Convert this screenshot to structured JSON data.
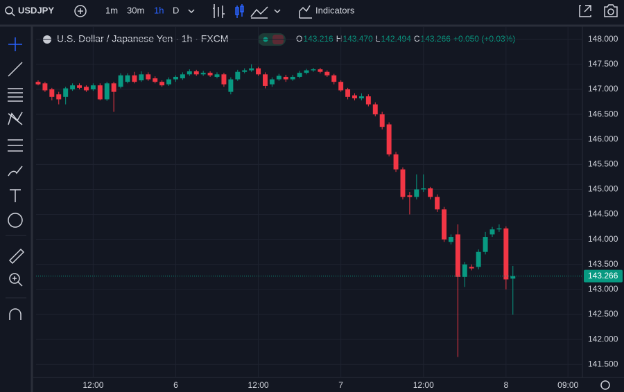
{
  "toolbar": {
    "symbol": "USDJPY",
    "intervals": [
      "1m",
      "30m",
      "1h",
      "D"
    ],
    "active_interval": 2,
    "indicators": "Indicators"
  },
  "chart_data": {
    "type": "candlestick",
    "title": "U.S. Dollar / Japanese Yen · 1h · FXCM",
    "ohlc_keys": [
      "O",
      "H",
      "L",
      "C"
    ],
    "value_labels": {
      "open": "143.216",
      "high": "143.470",
      "low": "142.494",
      "close": "143.266"
    },
    "change": "+0.050 (+0.03%)",
    "up_color": "#089981",
    "down_color": "#f23645",
    "open": [
      147.15,
      147.12,
      147.0,
      146.9,
      146.85,
      147.0,
      147.08,
      147.05,
      147.0,
      147.08,
      146.8,
      147.12,
      147.05,
      147.15,
      147.28,
      147.18,
      147.3,
      147.22,
      147.15,
      147.1,
      147.2,
      147.22,
      147.3,
      147.36,
      147.3,
      147.33,
      147.25,
      147.3,
      146.95,
      147.2,
      147.35,
      147.38,
      147.42,
      147.3,
      147.1,
      147.2,
      147.25,
      147.2,
      147.25,
      147.33,
      147.38,
      147.4,
      147.35,
      147.28,
      147.15,
      147.0,
      146.88,
      146.82,
      146.86,
      146.7,
      146.5,
      146.3,
      145.7,
      145.4,
      144.88,
      144.85,
      145.0,
      145.02,
      144.85,
      144.6,
      143.95,
      144.1,
      143.25,
      143.45,
      143.45,
      143.75,
      144.1,
      144.2,
      144.22,
      143.216
    ],
    "high": [
      147.18,
      147.15,
      147.03,
      146.95,
      147.05,
      147.12,
      147.12,
      147.08,
      147.12,
      147.12,
      147.15,
      147.15,
      147.32,
      147.32,
      147.35,
      147.36,
      147.34,
      147.26,
      147.18,
      147.24,
      147.28,
      147.34,
      147.4,
      147.39,
      147.37,
      147.36,
      147.34,
      147.33,
      147.24,
      147.39,
      147.42,
      147.5,
      147.45,
      147.34,
      147.24,
      147.31,
      147.29,
      147.29,
      147.37,
      147.41,
      147.43,
      147.43,
      147.38,
      147.31,
      147.18,
      147.03,
      146.92,
      146.92,
      146.9,
      146.74,
      146.55,
      146.34,
      145.75,
      145.44,
      144.95,
      145.3,
      145.3,
      145.05,
      144.9,
      144.65,
      144.1,
      144.3,
      143.55,
      143.5,
      143.8,
      144.15,
      144.25,
      144.3,
      144.26,
      143.47
    ],
    "low": [
      147.08,
      146.95,
      146.78,
      146.7,
      146.7,
      146.97,
      147.0,
      146.95,
      146.97,
      146.78,
      146.77,
      146.55,
      147.02,
      147.12,
      147.12,
      147.15,
      147.17,
      147.12,
      147.05,
      147.07,
      147.15,
      147.19,
      147.27,
      147.27,
      147.27,
      147.25,
      147.22,
      147.05,
      146.9,
      147.17,
      147.32,
      147.35,
      147.27,
      147.02,
      147.05,
      147.17,
      147.15,
      147.17,
      147.22,
      147.3,
      147.35,
      147.32,
      147.25,
      147.1,
      146.95,
      146.8,
      146.78,
      146.78,
      146.66,
      146.46,
      146.2,
      145.66,
      145.35,
      144.8,
      144.5,
      144.8,
      144.95,
      144.8,
      144.55,
      143.95,
      143.9,
      141.65,
      143.05,
      143.38,
      143.4,
      143.7,
      144.05,
      144.15,
      143.0,
      142.494
    ],
    "close": [
      147.1,
      146.98,
      146.85,
      146.8,
      147.02,
      147.08,
      147.03,
      146.98,
      147.08,
      146.8,
      147.12,
      146.95,
      147.28,
      147.28,
      147.15,
      147.3,
      147.2,
      147.15,
      147.08,
      147.2,
      147.25,
      147.3,
      147.36,
      147.3,
      147.33,
      147.28,
      147.3,
      147.1,
      147.2,
      147.35,
      147.38,
      147.42,
      147.3,
      147.07,
      147.2,
      147.27,
      147.2,
      147.25,
      147.33,
      147.38,
      147.4,
      147.35,
      147.28,
      147.15,
      146.98,
      146.85,
      146.82,
      146.86,
      146.7,
      146.5,
      146.25,
      145.7,
      145.4,
      144.85,
      144.85,
      145.0,
      145.02,
      144.85,
      144.6,
      144.0,
      144.05,
      143.25,
      143.5,
      143.42,
      143.75,
      144.05,
      144.2,
      144.22,
      143.2,
      143.266
    ],
    "ylim": [
      141.24,
      148.26
    ],
    "yticks": [
      {
        "value": 148,
        "label": "148.000"
      },
      {
        "value": 147.5,
        "label": "147.500"
      },
      {
        "value": 147,
        "label": "147.000"
      },
      {
        "value": 146.5,
        "label": "146.500"
      },
      {
        "value": 146,
        "label": "146.000"
      },
      {
        "value": 145.5,
        "label": "145.500"
      },
      {
        "value": 145,
        "label": "145.000"
      },
      {
        "value": 144.5,
        "label": "144.500"
      },
      {
        "value": 144,
        "label": "144.000"
      },
      {
        "value": 143.5,
        "label": "143.500"
      },
      {
        "value": 143,
        "label": "143.000"
      },
      {
        "value": 142.5,
        "label": "142.500"
      },
      {
        "value": 142,
        "label": "142.000"
      },
      {
        "value": 141.5,
        "label": "141.500"
      }
    ],
    "xlim": [
      -0.3,
      79.1
    ],
    "xticks": [
      {
        "value": 8,
        "label": "12:00"
      },
      {
        "value": 20,
        "label": "6"
      },
      {
        "value": 32,
        "label": "12:00"
      },
      {
        "value": 44,
        "label": "7"
      },
      {
        "value": 56,
        "label": "12:00"
      },
      {
        "value": 68,
        "label": "8"
      },
      {
        "value": 77,
        "label": "09:00"
      }
    ],
    "grid": true
  }
}
